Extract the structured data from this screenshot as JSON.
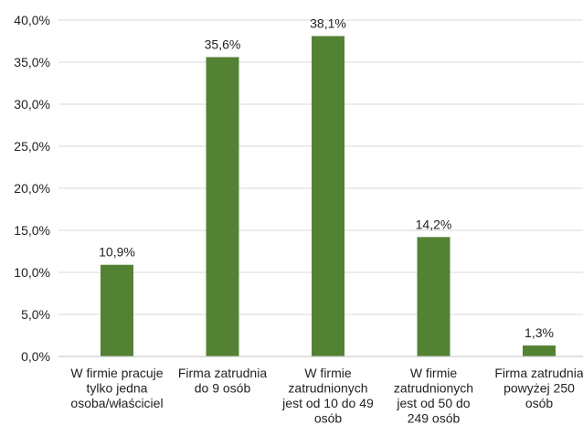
{
  "chart_data": {
    "type": "bar",
    "title": "",
    "xlabel": "",
    "ylabel": "",
    "ylim": [
      0,
      40
    ],
    "ytick_step": 5,
    "ytick_labels": [
      "0,0%",
      "5,0%",
      "10,0%",
      "15,0%",
      "20,0%",
      "25,0%",
      "30,0%",
      "35,0%",
      "40,0%"
    ],
    "grid": true,
    "legend": "none",
    "bar_color": "#548235",
    "categories": [
      [
        "W firmie pracuje",
        "tylko jedna",
        "osoba/właściciel"
      ],
      [
        "Firma zatrudnia",
        "do 9 osób"
      ],
      [
        "W firmie",
        "zatrudnionych",
        "jest od 10 do 49",
        "osób"
      ],
      [
        "W firmie",
        "zatrudnionych",
        "jest od 50 do",
        "249 osób"
      ],
      [
        "Firma zatrudnia",
        "powyżej 250",
        "osób"
      ]
    ],
    "values": [
      10.9,
      35.6,
      38.1,
      14.2,
      1.3
    ],
    "data_labels": [
      "10,9%",
      "35,6%",
      "38,1%",
      "14,2%",
      "1,3%"
    ]
  }
}
